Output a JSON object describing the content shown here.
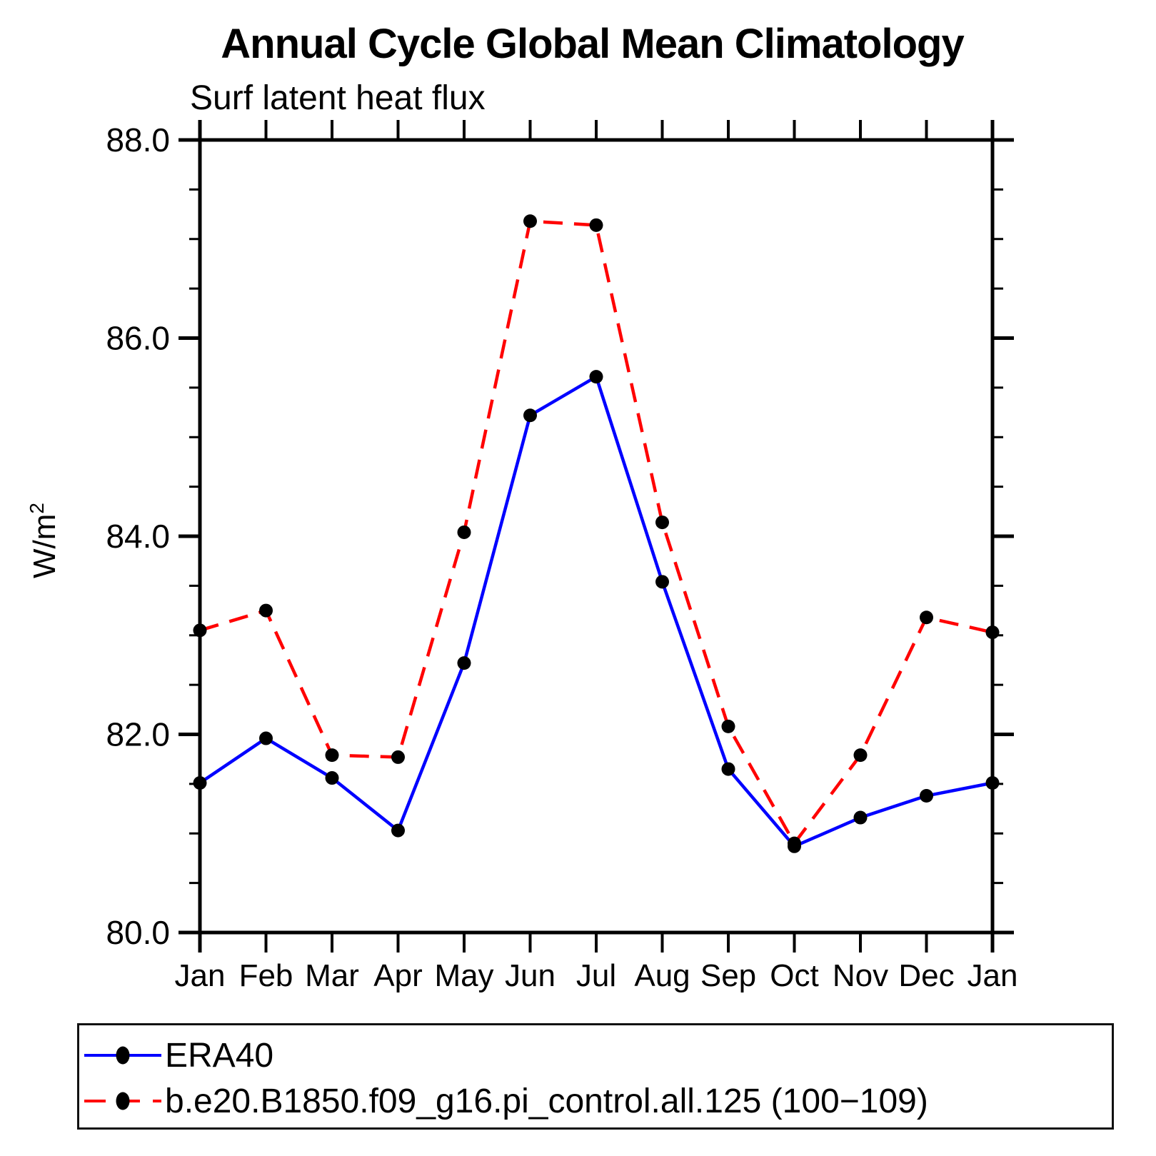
{
  "title": "Annual Cycle Global Mean Climatology",
  "subtitle": "Surf latent heat flux",
  "ylabel": "W/m",
  "ylabel_sup": "2",
  "colors": {
    "era40_line": "#0000ff",
    "model_line": "#ff0000",
    "marker": "#000000",
    "axis": "#000000"
  },
  "chart_data": {
    "type": "line",
    "categories": [
      "Jan",
      "Feb",
      "Mar",
      "Apr",
      "May",
      "Jun",
      "Jul",
      "Aug",
      "Sep",
      "Oct",
      "Nov",
      "Dec",
      "Jan"
    ],
    "xlabel": "",
    "ylabel": "W/m2",
    "ylim": [
      80.0,
      88.0
    ],
    "ytick_major": [
      80.0,
      82.0,
      84.0,
      86.0,
      88.0
    ],
    "ytick_labels": [
      "80.0",
      "82.0",
      "84.0",
      "86.0",
      "88.0"
    ],
    "ytick_minor_step": 0.5,
    "grid": false,
    "legend_position": "bottom",
    "series": [
      {
        "name": "ERA40",
        "color": "#0000ff",
        "style": "solid",
        "marker": "circle",
        "marker_color": "#000000",
        "values": [
          81.51,
          81.96,
          81.56,
          81.03,
          82.72,
          85.22,
          85.61,
          83.54,
          81.65,
          80.87,
          81.16,
          81.38,
          81.51
        ]
      },
      {
        "name": "b.e20.B1850.f09_g16.pi_control.all.125 (100−109)",
        "color": "#ff0000",
        "style": "dashed",
        "marker": "circle",
        "marker_color": "#000000",
        "values": [
          83.05,
          83.25,
          81.79,
          81.77,
          84.04,
          87.18,
          87.14,
          84.14,
          82.08,
          80.9,
          81.79,
          83.18,
          83.03
        ]
      }
    ]
  }
}
